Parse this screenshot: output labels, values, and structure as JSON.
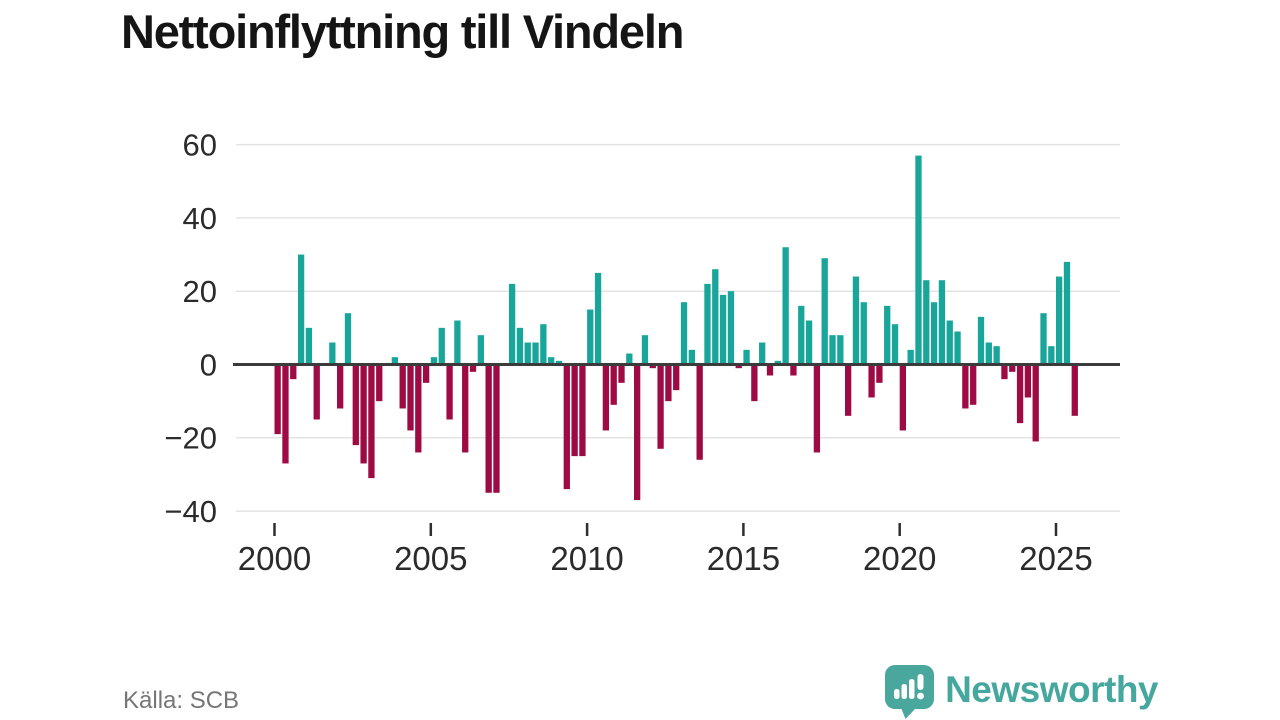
{
  "title": "Nettoinflyttning till Vindeln",
  "source": "Källa: SCB",
  "logo": {
    "text": "Newsworthy"
  },
  "colors": {
    "positive_bar": "#18a69b",
    "negative_bar": "#9e0b44",
    "zero_line": "#3b3b3b",
    "gridline": "#e3e3e3",
    "axis_text": "#2b2b2b",
    "logo_teal": "#4aa79d"
  },
  "chart_data": {
    "type": "bar",
    "title": "Nettoinflyttning till Vindeln",
    "ylabel": "",
    "xlabel": "",
    "frequency": "quarterly",
    "start": "2000-Q1",
    "end": "2025-Q3",
    "ylim": [
      -40,
      60
    ],
    "y_ticks": [
      60,
      40,
      20,
      0,
      -20,
      -40
    ],
    "x_tick_years": [
      2000,
      2005,
      2010,
      2015,
      2020,
      2025
    ],
    "grid": "horizontal",
    "legend": "none",
    "series_note": "teal = positive net migration, dark red = negative net migration",
    "values": [
      -19,
      -27,
      -4,
      30,
      10,
      -15,
      0,
      6,
      -12,
      14,
      -22,
      -27,
      -31,
      -10,
      0,
      2,
      -12,
      -18,
      -24,
      -5,
      2,
      10,
      -15,
      12,
      -24,
      -2,
      8,
      -35,
      -35,
      0,
      22,
      10,
      6,
      6,
      11,
      2,
      1,
      -34,
      -25,
      -25,
      15,
      25,
      -18,
      -11,
      -5,
      3,
      -37,
      8,
      -1,
      -23,
      -10,
      -7,
      17,
      4,
      -26,
      22,
      26,
      19,
      20,
      -1,
      4,
      -10,
      6,
      -3,
      1,
      32,
      -3,
      16,
      12,
      -24,
      29,
      8,
      8,
      -14,
      24,
      17,
      -9,
      -5,
      16,
      11,
      -18,
      4,
      57,
      23,
      17,
      23,
      12,
      9,
      -12,
      -11,
      13,
      6,
      5,
      -4,
      -2,
      -16,
      -9,
      -21,
      14,
      5,
      24,
      28,
      -14
    ]
  }
}
